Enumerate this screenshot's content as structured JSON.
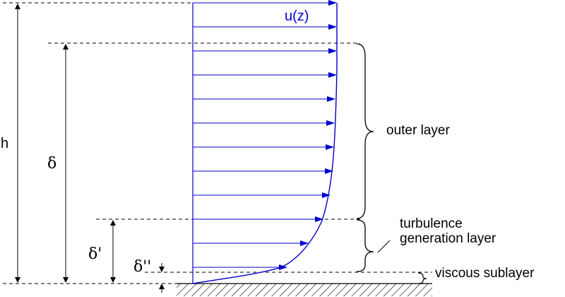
{
  "diagram": {
    "velocity_label": "u(z)",
    "height_label": "h",
    "delta_label": "δ",
    "delta_prime_label": "δ'",
    "delta_double_prime_label": "δ''",
    "layers": [
      {
        "key": "outer",
        "label": "outer layer"
      },
      {
        "key": "turbulence_line1",
        "label": "turbulence"
      },
      {
        "key": "turbulence_line2",
        "label": "generation layer"
      },
      {
        "key": "viscous",
        "label": "viscous sublayer"
      }
    ],
    "colors": {
      "profile": "#0000cc",
      "lines": "#000000"
    }
  }
}
